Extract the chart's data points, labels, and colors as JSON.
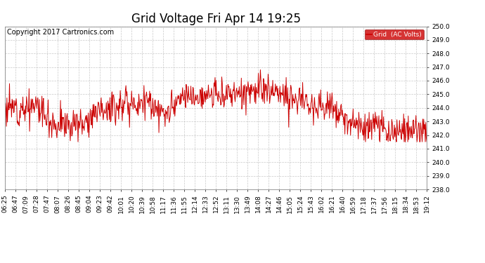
{
  "title": "Grid Voltage Fri Apr 14 19:25",
  "copyright": "Copyright 2017 Cartronics.com",
  "legend_label": "Grid  (AC Volts)",
  "legend_bg": "#cc0000",
  "legend_fg": "#ffffff",
  "line_color": "#cc0000",
  "bg_color": "#ffffff",
  "plot_bg": "#ffffff",
  "grid_color": "#bbbbbb",
  "ylim": [
    238.0,
    250.0
  ],
  "yticks": [
    238.0,
    239.0,
    240.0,
    241.0,
    242.0,
    243.0,
    244.0,
    245.0,
    246.0,
    247.0,
    248.0,
    249.0,
    250.0
  ],
  "xtick_labels": [
    "06:25",
    "06:47",
    "07:09",
    "07:28",
    "07:47",
    "08:07",
    "08:26",
    "08:45",
    "09:04",
    "09:23",
    "09:42",
    "10:01",
    "10:20",
    "10:39",
    "10:58",
    "11:17",
    "11:36",
    "11:55",
    "12:14",
    "12:33",
    "12:52",
    "13:11",
    "13:30",
    "13:49",
    "14:08",
    "14:27",
    "14:46",
    "15:05",
    "15:24",
    "15:43",
    "16:02",
    "16:21",
    "16:40",
    "16:59",
    "17:18",
    "17:37",
    "17:56",
    "18:15",
    "18:34",
    "18:53",
    "19:12"
  ],
  "title_fontsize": 12,
  "copyright_fontsize": 7,
  "tick_fontsize": 6.5,
  "line_width": 0.7
}
